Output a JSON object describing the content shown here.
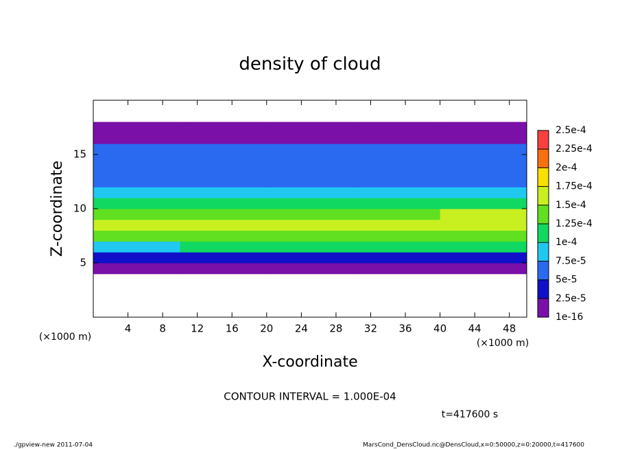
{
  "chart_data": {
    "type": "heatmap",
    "title": "density of cloud",
    "xlabel": "X-coordinate",
    "ylabel": "Z-coordinate",
    "xunit": "(×1000 m)",
    "xlim": [
      0,
      50
    ],
    "ylim": [
      0,
      20
    ],
    "xticks": [
      4,
      8,
      12,
      16,
      20,
      24,
      28,
      32,
      36,
      40,
      44,
      48
    ],
    "yticks": [
      5,
      10,
      15
    ],
    "x_edges": [
      0,
      10,
      20,
      30,
      40,
      50
    ],
    "z_edges": [
      0,
      1,
      2,
      3,
      4,
      5,
      6,
      7,
      8,
      9,
      10,
      11,
      12,
      13,
      14,
      15,
      16,
      17,
      18,
      19,
      20
    ],
    "values": [
      [
        null,
        null,
        null,
        null,
        null
      ],
      [
        null,
        null,
        null,
        null,
        null
      ],
      [
        null,
        null,
        null,
        null,
        null
      ],
      [
        null,
        null,
        null,
        null,
        null
      ],
      [
        1e-05,
        1e-05,
        1e-05,
        1e-05,
        1e-05
      ],
      [
        3e-05,
        3e-05,
        3e-05,
        3e-05,
        4e-05
      ],
      [
        9e-05,
        0.0001,
        0.00011,
        0.0001,
        0.0001
      ],
      [
        0.00013,
        0.00013,
        0.00014,
        0.00013,
        0.00013
      ],
      [
        0.00016,
        0.00015,
        0.00016,
        0.00015,
        0.00016
      ],
      [
        0.00014,
        0.00013,
        0.00014,
        0.00014,
        0.00015
      ],
      [
        0.00011,
        0.0001,
        0.00011,
        0.00012,
        0.00012
      ],
      [
        8e-05,
        8e-05,
        8e-05,
        9e-05,
        8e-05
      ],
      [
        7e-05,
        7e-05,
        6e-05,
        6e-05,
        5e-05
      ],
      [
        6e-05,
        7e-05,
        6e-05,
        5e-05,
        5e-05
      ],
      [
        6e-05,
        6e-05,
        6e-05,
        6e-05,
        6e-05
      ],
      [
        5e-05,
        5e-05,
        5e-05,
        5e-05,
        5e-05
      ],
      [
        2e-05,
        2e-05,
        2e-05,
        2e-05,
        2e-05
      ],
      [
        1e-05,
        1e-05,
        1e-05,
        1e-05,
        1e-05
      ],
      [
        null,
        null,
        null,
        null,
        null
      ],
      [
        null,
        null,
        null,
        null,
        null
      ]
    ],
    "colorbar": {
      "ticks": [
        {
          "value": 1e-16,
          "label": "1e-16"
        },
        {
          "value": 2.5e-05,
          "label": "2.5e-5"
        },
        {
          "value": 5e-05,
          "label": "5e-5"
        },
        {
          "value": 7.5e-05,
          "label": "7.5e-5"
        },
        {
          "value": 0.0001,
          "label": "1e-4"
        },
        {
          "value": 0.000125,
          "label": "1.25e-4"
        },
        {
          "value": 0.00015,
          "label": "1.5e-4"
        },
        {
          "value": 0.000175,
          "label": "1.75e-4"
        },
        {
          "value": 0.0002,
          "label": "2e-4"
        },
        {
          "value": 0.000225,
          "label": "2.25e-4"
        },
        {
          "value": 0.00025,
          "label": "2.5e-4"
        }
      ],
      "colors": [
        "#7a10a8",
        "#1010c8",
        "#2a6af0",
        "#20c8f0",
        "#10d860",
        "#60e020",
        "#c8f020",
        "#f8e000",
        "#f87010",
        "#f84040"
      ]
    },
    "annotations": {
      "contour": "CONTOUR INTERVAL = 1.000E-04",
      "time": "t=417600 s",
      "footer_left": "./gpview-new  2011-07-04",
      "footer_right": "MarsCond_DensCloud.nc@DensCloud,x=0:50000,z=0:20000,t=417600"
    }
  }
}
